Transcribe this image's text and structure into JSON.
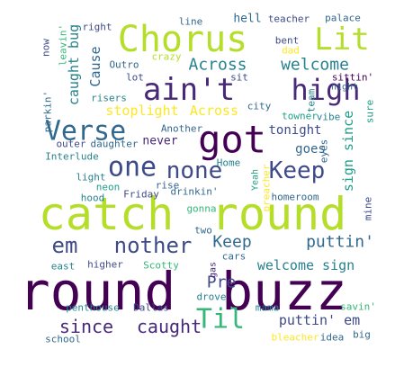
{
  "palette": {
    "dark_purple": "#440154",
    "indigo": "#482878",
    "blue_violet": "#3e4a89",
    "slate_blue": "#31688e",
    "teal": "#26828e",
    "sea_green": "#1f9e89",
    "green": "#35b779",
    "light_green": "#6ece58",
    "lime": "#b5de2b",
    "yellow": "#fde725"
  },
  "words": [
    {
      "text": "round",
      "color": "#440154"
    },
    {
      "text": "buzz",
      "color": "#440154"
    },
    {
      "text": "catch",
      "color": "#b5de2b"
    },
    {
      "text": "round",
      "color": "#b5de2b"
    },
    {
      "text": "Chorus",
      "color": "#b5de2b"
    },
    {
      "text": "Lit",
      "color": "#b5de2b"
    },
    {
      "text": "ain't",
      "color": "#482878"
    },
    {
      "text": "high",
      "color": "#482878"
    },
    {
      "text": "got",
      "color": "#440154"
    },
    {
      "text": "Verse",
      "color": "#31688e"
    },
    {
      "text": "one",
      "color": "#3e4a89"
    },
    {
      "text": "none",
      "color": "#3e4a89"
    },
    {
      "text": "Keep",
      "color": "#3e4a89"
    },
    {
      "text": "em",
      "color": "#3e4a89"
    },
    {
      "text": "nother",
      "color": "#3e4a89"
    },
    {
      "text": "Keep",
      "color": "#31688e"
    },
    {
      "text": "puttin'",
      "color": "#31688e"
    },
    {
      "text": "Til",
      "color": "#35b779"
    },
    {
      "text": "since",
      "color": "#482878"
    },
    {
      "text": "caught",
      "color": "#482878"
    },
    {
      "text": "Across",
      "color": "#26828e"
    },
    {
      "text": "welcome",
      "color": "#26828e"
    },
    {
      "text": "stoplight",
      "color": "#fde725"
    },
    {
      "text": "Across",
      "color": "#fde725"
    },
    {
      "text": "caught bug",
      "color": "#26828e"
    },
    {
      "text": "Cause",
      "color": "#31688e"
    },
    {
      "text": "sign since",
      "color": "#1f9e89"
    },
    {
      "text": "welcome sign",
      "color": "#26828e"
    },
    {
      "text": "puttin' em",
      "color": "#3e4a89"
    },
    {
      "text": "Pre",
      "color": "#3e4a89"
    },
    {
      "text": "tonight",
      "color": "#3e4a89"
    },
    {
      "text": "goes",
      "color": "#31688e"
    },
    {
      "text": "never",
      "color": "#482878"
    },
    {
      "text": "hell",
      "color": "#31688e"
    },
    {
      "text": "teacher",
      "color": "#3e4a89"
    },
    {
      "text": "palace",
      "color": "#31688e"
    },
    {
      "text": "line",
      "color": "#31688e"
    },
    {
      "text": "right",
      "color": "#3e4a89"
    },
    {
      "text": "leavin'",
      "color": "#35b779"
    },
    {
      "text": "now",
      "color": "#3e4a89"
    },
    {
      "text": "Outro",
      "color": "#31688e"
    },
    {
      "text": "crazy",
      "color": "#b5de2b"
    },
    {
      "text": "bent",
      "color": "#3e4a89"
    },
    {
      "text": "dad",
      "color": "#fde725"
    },
    {
      "text": "sittin'",
      "color": "#440154"
    },
    {
      "text": "night",
      "color": "#31688e"
    },
    {
      "text": "lot",
      "color": "#3e4a89"
    },
    {
      "text": "sit",
      "color": "#3e4a89"
    },
    {
      "text": "risers",
      "color": "#26828e"
    },
    {
      "text": "team",
      "color": "#26828e"
    },
    {
      "text": "parkin'",
      "color": "#31688e"
    },
    {
      "text": "city",
      "color": "#31688e"
    },
    {
      "text": "towner",
      "color": "#1f9e89"
    },
    {
      "text": "vibe",
      "color": "#26828e"
    },
    {
      "text": "sure",
      "color": "#1f9e89"
    },
    {
      "text": "Another",
      "color": "#31688e"
    },
    {
      "text": "outer",
      "color": "#3e4a89"
    },
    {
      "text": "daughter",
      "color": "#31688e"
    },
    {
      "text": "eyes",
      "color": "#31688e"
    },
    {
      "text": "Interlude",
      "color": "#26828e"
    },
    {
      "text": "Home",
      "color": "#26828e"
    },
    {
      "text": "light",
      "color": "#26828e"
    },
    {
      "text": "Yeah",
      "color": "#1f9e89"
    },
    {
      "text": "neon",
      "color": "#1f9e89"
    },
    {
      "text": "rise",
      "color": "#31688e"
    },
    {
      "text": "preacher",
      "color": "#fde725"
    },
    {
      "text": "hood",
      "color": "#26828e"
    },
    {
      "text": "Friday",
      "color": "#3e4a89"
    },
    {
      "text": "drinkin'",
      "color": "#31688e"
    },
    {
      "text": "homeroom",
      "color": "#31688e"
    },
    {
      "text": "mine",
      "color": "#3e4a89"
    },
    {
      "text": "gonna",
      "color": "#35b779"
    },
    {
      "text": "two",
      "color": "#31688e"
    },
    {
      "text": "cars",
      "color": "#31688e"
    },
    {
      "text": "east",
      "color": "#26828e"
    },
    {
      "text": "higher",
      "color": "#3e4a89"
    },
    {
      "text": "Scotty",
      "color": "#35b779"
    },
    {
      "text": "gas",
      "color": "#482878"
    },
    {
      "text": "drove",
      "color": "#26828e"
    },
    {
      "text": "mama",
      "color": "#26828e"
    },
    {
      "text": "savin'",
      "color": "#35b779"
    },
    {
      "text": "penthouse",
      "color": "#26828e"
    },
    {
      "text": "Dallas",
      "color": "#3e4a89"
    },
    {
      "text": "bleacher",
      "color": "#fde725"
    },
    {
      "text": "idea",
      "color": "#31688e"
    },
    {
      "text": "big",
      "color": "#31688e"
    },
    {
      "text": "school",
      "color": "#31688e"
    }
  ]
}
